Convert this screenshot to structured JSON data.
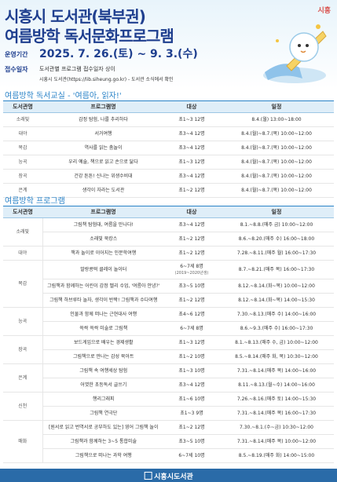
{
  "header": {
    "title_line1": "시흥시 도서관(북부권)",
    "title_line2": "여름방학 독서문화프로그램",
    "logo_text": "시흥"
  },
  "period": {
    "label": "운영기간",
    "value": "2025. 7. 26.(토) ~ 9. 3.(수)"
  },
  "reception": {
    "label": "접수일자",
    "value": "도서관별 프로그램 접수일자 상이",
    "note": "시흥시 도서관(https://lib.siheung.go.kr) - 도서관 소식에서 확인"
  },
  "section1": {
    "title": "여름방학 독서교실 - '여름아, 읽자!'",
    "headers": [
      "도서관명",
      "프로그램명",
      "대상",
      "일정"
    ],
    "rows": [
      {
        "lib": "소래빛",
        "program": "감정 탐험, 나를 추리하다",
        "target": "초1~3 12명",
        "schedule": "8.4.(월) 13:00~18:00"
      },
      {
        "lib": "대야",
        "program": "서거여행",
        "target": "초3~4 12명",
        "schedule": "8.4.(월)~8.7.(목) 10:00~12:00"
      },
      {
        "lib": "목감",
        "program": "역사를 읽는 춤놀이",
        "target": "초3~4 12명",
        "schedule": "8.4.(월)~8.7.(목) 10:00~12:00"
      },
      {
        "lib": "능곡",
        "program": "우리 예술, 책으로 읽고 손으로 닮다",
        "target": "초1~3 12명",
        "schedule": "8.4.(월)~8.7.(목) 10:00~12:00"
      },
      {
        "lib": "장곡",
        "program": "건강 튼튼! 신나는 위생수비대",
        "target": "초3~4 12명",
        "schedule": "8.4.(월)~8.7.(목) 10:00~12:00"
      },
      {
        "lib": "은계",
        "program": "생각이 자라는 도서관",
        "target": "초1~2 12명",
        "schedule": "8.4.(월)~8.7.(목) 10:00~12:00"
      }
    ]
  },
  "section2": {
    "title": "여름방학 프로그램",
    "headers": [
      "도서관명",
      "프로그램명",
      "대상",
      "일정"
    ],
    "groups": [
      {
        "lib": "소래빛",
        "rows": [
          {
            "program": "그림책 탐험대, 여름을 만나다!",
            "target": "초3~4 12명",
            "schedule": "8.1.~8.8.(매주 금) 10:00~12:00"
          },
          {
            "program": "소래빛 북캉스",
            "target": "초1~2 12명",
            "schedule": "8.6.~8.20.(매주 수) 16:00~18:00"
          }
        ]
      },
      {
        "lib": "대야",
        "rows": [
          {
            "program": "책과 놀이로 이어지는 인문학여행",
            "target": "초1~2 12명",
            "schedule": "7.28.~8.11.(매주 월) 16:00~17:30"
          }
        ]
      },
      {
        "lib": "목감",
        "rows": [
          {
            "program": "말랑콩떡 클레이 놀이터",
            "target": "6~7세 8명",
            "target_sub": "(2019~2020년생)",
            "schedule": "8.7.~8.21.(매주 목) 16:00~17:30"
          },
          {
            "program": "그림책과 함께하는 어린이 감정 멜리 수업, '여름아 안녕?'",
            "target": "초3~5 10명",
            "schedule": "8.12.~8.14.(화~목) 10:00~12:00"
          },
          {
            "program": "그림책 하브루타 놀자, 생각이 반짝! 그림책과 수다여행",
            "target": "초1~2 12명",
            "schedule": "8.12.~8.14.(화~목) 14:00~15:30"
          }
        ]
      },
      {
        "lib": "능곡",
        "rows": [
          {
            "program": "인물과 함께 떠나는 근현대사 여행",
            "target": "초4~6 12명",
            "schedule": "7.30.~8.13.(매주 수) 14:00~16:00"
          },
          {
            "program": "쓱싹 쓱싹 미술로 그림책",
            "target": "6~7세 8명",
            "schedule": "8.6.~9.3.(매주 수) 16:00~17:30"
          }
        ]
      },
      {
        "lib": "장곡",
        "rows": [
          {
            "program": "보드게임으로 배우는 경제생활",
            "target": "초1~3 12명",
            "schedule": "8.1.~8.13.(매주 수, 금) 10:00~12:00"
          },
          {
            "program": "그림책으로 만나는 감성 북아트",
            "target": "초1~2 10명",
            "schedule": "8.5.~8.14.(매주 화, 목) 10:30~12:00"
          }
        ]
      },
      {
        "lib": "은계",
        "rows": [
          {
            "program": "그림책 속 여행세상 탐험",
            "target": "초1~3 10명",
            "schedule": "7.31.~8.14.(매주 목) 14:00~16:00"
          },
          {
            "program": "어엿한 초등독서 글쓰기",
            "target": "초3~4 12명",
            "schedule": "8.11.~8.13.(월~수) 14:00~16:00"
          }
        ]
      },
      {
        "lib": "신천",
        "rows": [
          {
            "program": "행리그래피",
            "target": "초1~6 10명",
            "schedule": "7.26.~8.16.(매주 토) 14:00~15:30"
          },
          {
            "program": "그림책 연극단",
            "target": "초1~3 9명",
            "schedule": "7.31.~8.14.(매주 목) 16:00~17:30"
          }
        ]
      },
      {
        "lib": "매화",
        "rows": [
          {
            "program": "[원서로 읽고 번역서로 공부하도 있는] 영어 그림책 놀이",
            "target": "초1~2 12명",
            "schedule": "7.30.~8.1.(수~금) 10:30~12:00"
          },
          {
            "program": "그림책과 함께하는 3~5 통합미술",
            "target": "초3~5 10명",
            "schedule": "7.31.~8.14.(매주 목) 10:00~12:00"
          },
          {
            "program": "그림책으로 떠나는 과학 여행",
            "target": "6~7세 10명",
            "schedule": "8.5.~8.19.(매주 화) 14:00~15:00"
          }
        ]
      }
    ]
  },
  "footer": {
    "logo_text": "시흥시도서관"
  },
  "colors": {
    "primary": "#1f3f8f",
    "accent": "#2c84c8",
    "header_bg": "#dfeef8",
    "footer_bg": "#2a6ba8"
  }
}
